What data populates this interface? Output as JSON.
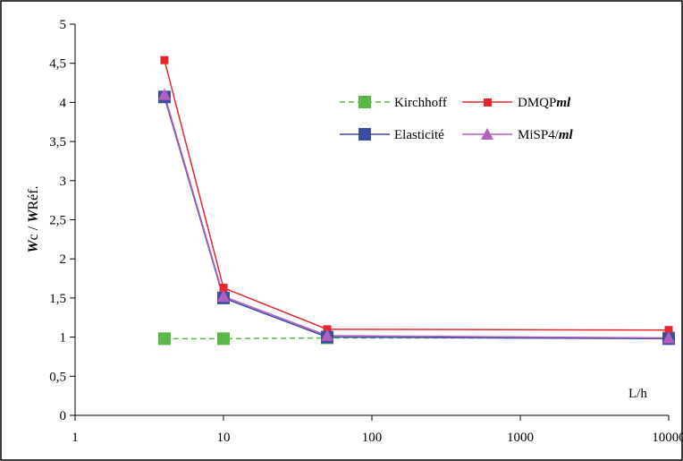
{
  "chart_data": {
    "type": "line",
    "xscale": "log",
    "x": [
      4,
      10,
      50,
      10000
    ],
    "xlim": [
      1,
      10000
    ],
    "ylim": [
      0,
      5
    ],
    "xticks": [
      "1",
      "10",
      "100",
      "1000",
      "10000"
    ],
    "yticks": [
      "0",
      "0,5",
      "1",
      "1,5",
      "2",
      "2,5",
      "3",
      "3,5",
      "4",
      "4,5",
      "5"
    ],
    "xlabel": "L/h",
    "ylabel": {
      "w1": "W",
      "sub1": "c",
      "sep": " / ",
      "w2": "W",
      "sub2": "Réf."
    },
    "grid": false,
    "legend_position": "top-right",
    "series": [
      {
        "name": "Kirchhoff",
        "values": [
          0.98,
          0.98,
          0.99,
          0.99
        ],
        "color": "#58b947",
        "marker": "square",
        "line": "dashed"
      },
      {
        "name": "DMQP",
        "name_suffix": "ml",
        "values": [
          4.54,
          1.63,
          1.1,
          1.09
        ],
        "color": "#e8262b",
        "marker": "square-small",
        "line": "solid"
      },
      {
        "name": "Elasticité",
        "values": [
          4.07,
          1.5,
          1.0,
          0.98
        ],
        "color": "#3b4ea3",
        "marker": "square",
        "line": "solid"
      },
      {
        "name": "MiSP4/",
        "name_suffix": "ml",
        "values": [
          4.1,
          1.52,
          1.02,
          0.99
        ],
        "color": "#b260bc",
        "marker": "triangle",
        "line": "solid"
      }
    ]
  }
}
